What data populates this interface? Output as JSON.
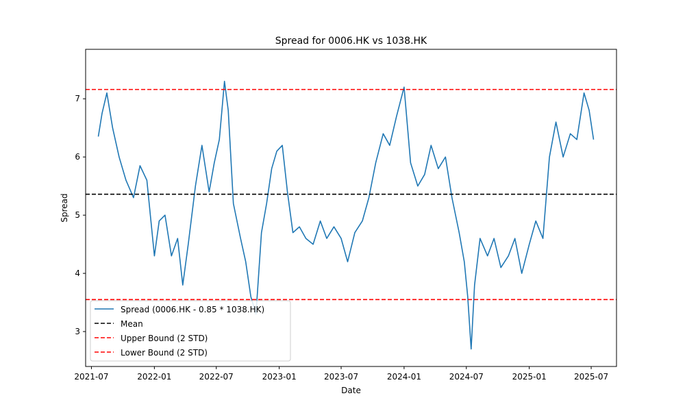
{
  "chart_data": {
    "type": "line",
    "title": "Spread for 0006.HK vs 1038.HK",
    "xlabel": "Date",
    "ylabel": "Spread",
    "xlim": [
      "2021-06-14",
      "2025-09-13"
    ],
    "ylim": [
      2.4,
      7.85
    ],
    "x_ticks": [
      "2021-07",
      "2022-01",
      "2022-07",
      "2023-01",
      "2023-07",
      "2024-01",
      "2024-07",
      "2025-01",
      "2025-07"
    ],
    "y_ticks": [
      3,
      4,
      5,
      6,
      7
    ],
    "grid": false,
    "legend_position": "lower-left",
    "series": [
      {
        "name": "Spread (0006.HK - 0.85 * 1038.HK)",
        "color": "#1f77b4",
        "style": "solid",
        "x": [
          "2021-07-21",
          "2021-08-01",
          "2021-08-15",
          "2021-09-01",
          "2021-09-20",
          "2021-10-10",
          "2021-11-01",
          "2021-11-20",
          "2021-12-10",
          "2022-01-01",
          "2022-01-15",
          "2022-02-01",
          "2022-02-20",
          "2022-03-10",
          "2022-03-25",
          "2022-04-10",
          "2022-05-01",
          "2022-05-20",
          "2022-06-10",
          "2022-06-25",
          "2022-07-10",
          "2022-07-25",
          "2022-08-05",
          "2022-08-20",
          "2022-09-10",
          "2022-09-25",
          "2022-10-10",
          "2022-10-25",
          "2022-11-10",
          "2022-11-25",
          "2022-12-10",
          "2022-12-25",
          "2023-01-10",
          "2023-01-25",
          "2023-02-10",
          "2023-03-01",
          "2023-03-20",
          "2023-04-10",
          "2023-05-01",
          "2023-05-20",
          "2023-06-10",
          "2023-07-01",
          "2023-07-20",
          "2023-08-10",
          "2023-09-01",
          "2023-09-20",
          "2023-10-10",
          "2023-11-01",
          "2023-11-20",
          "2023-12-10",
          "2024-01-01",
          "2024-01-20",
          "2024-02-10",
          "2024-03-01",
          "2024-03-20",
          "2024-04-10",
          "2024-05-01",
          "2024-05-20",
          "2024-06-10",
          "2024-06-25",
          "2024-07-05",
          "2024-07-15",
          "2024-07-25",
          "2024-08-10",
          "2024-09-01",
          "2024-09-20",
          "2024-10-10",
          "2024-11-01",
          "2024-11-20",
          "2024-12-10",
          "2025-01-01",
          "2025-01-20",
          "2025-02-10",
          "2025-03-01",
          "2025-03-20",
          "2025-04-10",
          "2025-05-01",
          "2025-05-20",
          "2025-06-10",
          "2025-06-25",
          "2025-07-08"
        ],
        "values": [
          6.35,
          6.75,
          7.1,
          6.5,
          6.0,
          5.6,
          5.3,
          5.85,
          5.6,
          4.3,
          4.9,
          5.0,
          4.3,
          4.6,
          3.8,
          4.5,
          5.5,
          6.2,
          5.4,
          5.9,
          6.3,
          7.3,
          6.8,
          5.2,
          4.6,
          4.2,
          3.6,
          3.3,
          4.7,
          5.2,
          5.8,
          6.1,
          6.2,
          5.4,
          4.7,
          4.8,
          4.6,
          4.5,
          4.9,
          4.6,
          4.8,
          4.6,
          4.2,
          4.7,
          4.9,
          5.3,
          5.9,
          6.4,
          6.2,
          6.7,
          7.2,
          5.9,
          5.5,
          5.7,
          6.2,
          5.8,
          6.0,
          5.3,
          4.7,
          4.2,
          3.6,
          2.7,
          3.8,
          4.6,
          4.3,
          4.6,
          4.1,
          4.3,
          4.6,
          4.0,
          4.5,
          4.9,
          4.6,
          6.0,
          6.6,
          6.0,
          6.4,
          6.3,
          7.1,
          6.8,
          6.3
        ]
      },
      {
        "name": "Mean",
        "color": "#000000",
        "style": "dashed",
        "value": 5.36
      },
      {
        "name": "Upper Bound (2 STD)",
        "color": "#ff0000",
        "style": "dashed",
        "value": 7.16
      },
      {
        "name": "Lower Bound (2 STD)",
        "color": "#ff0000",
        "style": "dashed",
        "value": 3.55
      }
    ]
  }
}
